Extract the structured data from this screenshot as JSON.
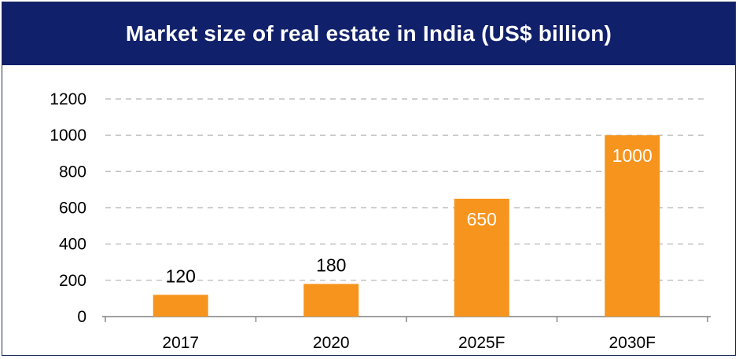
{
  "title": "Market size of real estate in India (US$ billion)",
  "colors": {
    "header_bg": "#11206b",
    "bar": "#f7941d",
    "grid": "#bfbfbf",
    "axis": "#808080",
    "text": "#000000",
    "label_inside": "#ffffff"
  },
  "chart_data": {
    "type": "bar",
    "title": "Market size of real estate in India (US$ billion)",
    "categories": [
      "2017",
      "2020",
      "2025F",
      "2030F"
    ],
    "values": [
      120,
      180,
      650,
      1000
    ],
    "data_labels": [
      "120",
      "180",
      "650",
      "1000"
    ],
    "xlabel": "",
    "ylabel": "",
    "ylim": [
      0,
      1200
    ],
    "yticks": [
      "0",
      "200",
      "400",
      "600",
      "800",
      "1000",
      "1200"
    ],
    "grid": true,
    "legend": "none"
  }
}
